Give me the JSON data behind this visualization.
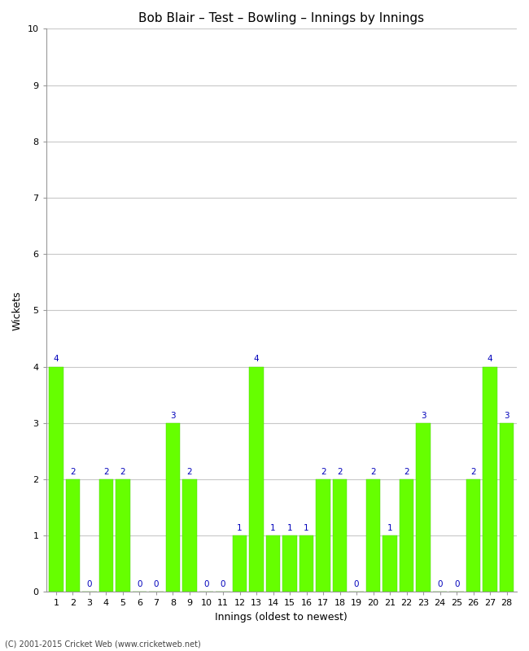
{
  "title": "Bob Blair – Test – Bowling – Innings by Innings",
  "xlabel": "Innings (oldest to newest)",
  "ylabel": "Wickets",
  "innings": [
    1,
    2,
    3,
    4,
    5,
    6,
    7,
    8,
    9,
    10,
    11,
    12,
    13,
    14,
    15,
    16,
    17,
    18,
    19,
    20,
    21,
    22,
    23,
    24,
    25,
    26,
    27,
    28
  ],
  "values": [
    4,
    2,
    0,
    2,
    2,
    0,
    0,
    3,
    2,
    0,
    0,
    1,
    4,
    1,
    1,
    1,
    2,
    2,
    0,
    2,
    1,
    2,
    3,
    0,
    0,
    2,
    4,
    3
  ],
  "bar_color": "#66ff00",
  "bar_edge_color": "#44cc00",
  "label_color": "#0000bb",
  "ylim": [
    0,
    10
  ],
  "yticks": [
    0,
    1,
    2,
    3,
    4,
    5,
    6,
    7,
    8,
    9,
    10
  ],
  "background_color": "#ffffff",
  "grid_color": "#c8c8c8",
  "title_fontsize": 11,
  "axis_label_fontsize": 9,
  "tick_label_fontsize": 8,
  "bar_label_fontsize": 7.5,
  "footer": "(C) 2001-2015 Cricket Web (www.cricketweb.net)"
}
